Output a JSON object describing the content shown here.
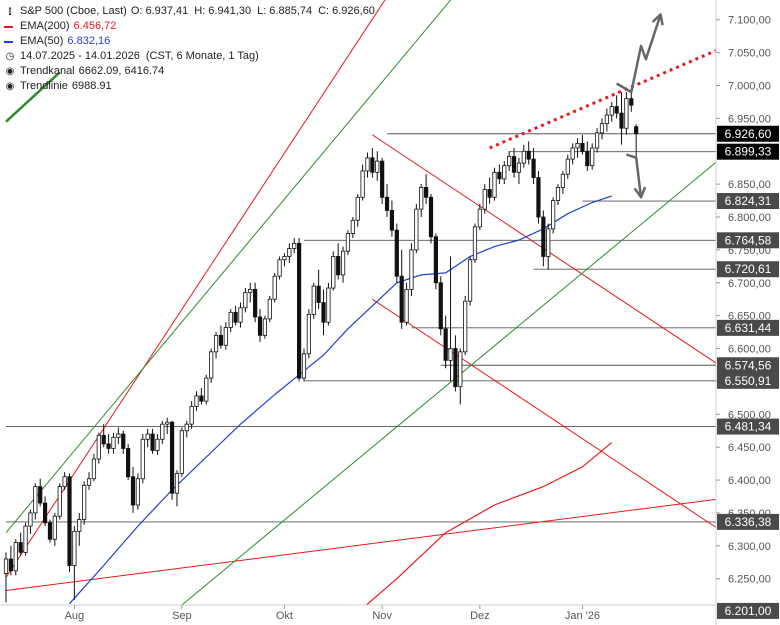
{
  "legend": {
    "title": "S&P 500 (Cboe, Last)",
    "ohlc": {
      "o_label": "O:",
      "o": "6.937,41",
      "h_label": "H:",
      "h": "6.941,30",
      "l_label": "L:",
      "l": "6.885,74",
      "c_label": "C:",
      "c": "6.926,60"
    },
    "ema200": {
      "label": "EMA(200)",
      "value": "6.456,72",
      "color": "#e8191c"
    },
    "ema50": {
      "label": "EMA(50)",
      "value": "6.832,16",
      "color": "#1f3fd6"
    },
    "period": "14.07.2025 - 14.01.2026",
    "period_info": "(CST, 6 Monate, 1 Tag)",
    "trendkanal": {
      "label": "Trendkanal",
      "value": "6662.09, 6416.74"
    },
    "trendlinie": {
      "label": "Trendlinie",
      "value": "6988.91"
    }
  },
  "chart_data": {
    "type": "candlestick",
    "y_range": [
      6210,
      7130
    ],
    "y_ticks": [
      6250,
      6300,
      6350,
      6400,
      6450,
      6500,
      6550,
      6600,
      6650,
      6700,
      6750,
      6800,
      6850,
      6900,
      6950,
      7000,
      7050,
      7100
    ],
    "y_tick_labels": [
      "6.250,00",
      "6.300,00",
      "6.350,00",
      "6.400,00",
      "6.450,00",
      "6.500,00",
      "6.550,00",
      "6.600,00",
      "6.650,00",
      "6.700,00",
      "6.750,00",
      "6.800,00",
      "6.850,00",
      "6.900,00",
      "6.950,00",
      "7.000,00",
      "7.050,00",
      "7.100,00"
    ],
    "x_labels": [
      {
        "label": "Aug",
        "day": 14
      },
      {
        "label": "Sep",
        "day": 36
      },
      {
        "label": "Okt",
        "day": 57
      },
      {
        "label": "Nov",
        "day": 77
      },
      {
        "label": "Dez",
        "day": 97
      },
      {
        "label": "Jan '26",
        "day": 118
      }
    ],
    "total_days": 145,
    "candles": [
      [
        6258,
        6290,
        6214,
        6280
      ],
      [
        6280,
        6300,
        6255,
        6262
      ],
      [
        6262,
        6310,
        6255,
        6305
      ],
      [
        6305,
        6320,
        6285,
        6290
      ],
      [
        6290,
        6335,
        6285,
        6330
      ],
      [
        6330,
        6355,
        6318,
        6350
      ],
      [
        6350,
        6395,
        6340,
        6390
      ],
      [
        6390,
        6402,
        6360,
        6365
      ],
      [
        6365,
        6375,
        6330,
        6335
      ],
      [
        6335,
        6340,
        6305,
        6310
      ],
      [
        6310,
        6350,
        6300,
        6345
      ],
      [
        6345,
        6395,
        6340,
        6390
      ],
      [
        6390,
        6412,
        6385,
        6405
      ],
      [
        6405,
        6410,
        6260,
        6270
      ],
      [
        6270,
        6330,
        6218,
        6322
      ],
      [
        6322,
        6350,
        6300,
        6340
      ],
      [
        6340,
        6398,
        6332,
        6392
      ],
      [
        6392,
        6412,
        6385,
        6402
      ],
      [
        6402,
        6440,
        6398,
        6432
      ],
      [
        6432,
        6472,
        6425,
        6468
      ],
      [
        6468,
        6485,
        6450,
        6455
      ],
      [
        6455,
        6470,
        6440,
        6448
      ],
      [
        6448,
        6472,
        6440,
        6465
      ],
      [
        6465,
        6480,
        6455,
        6470
      ],
      [
        6470,
        6475,
        6440,
        6448
      ],
      [
        6448,
        6455,
        6400,
        6405
      ],
      [
        6405,
        6420,
        6350,
        6362
      ],
      [
        6362,
        6410,
        6355,
        6402
      ],
      [
        6402,
        6470,
        6395,
        6462
      ],
      [
        6462,
        6478,
        6450,
        6470
      ],
      [
        6470,
        6478,
        6440,
        6445
      ],
      [
        6445,
        6470,
        6438,
        6462
      ],
      [
        6462,
        6490,
        6455,
        6485
      ],
      [
        6485,
        6495,
        6470,
        6488
      ],
      [
        6488,
        6490,
        6370,
        6380
      ],
      [
        6380,
        6415,
        6360,
        6410
      ],
      [
        6410,
        6480,
        6405,
        6475
      ],
      [
        6475,
        6490,
        6465,
        6485
      ],
      [
        6485,
        6520,
        6478,
        6512
      ],
      [
        6512,
        6535,
        6505,
        6528
      ],
      [
        6528,
        6540,
        6515,
        6520
      ],
      [
        6520,
        6560,
        6515,
        6555
      ],
      [
        6555,
        6600,
        6548,
        6595
      ],
      [
        6595,
        6625,
        6585,
        6620
      ],
      [
        6620,
        6635,
        6600,
        6605
      ],
      [
        6605,
        6640,
        6598,
        6632
      ],
      [
        6632,
        6660,
        6625,
        6655
      ],
      [
        6655,
        6665,
        6635,
        6640
      ],
      [
        6640,
        6670,
        6632,
        6662
      ],
      [
        6662,
        6692,
        6655,
        6685
      ],
      [
        6685,
        6700,
        6670,
        6690
      ],
      [
        6690,
        6700,
        6640,
        6648
      ],
      [
        6648,
        6660,
        6610,
        6620
      ],
      [
        6620,
        6650,
        6615,
        6645
      ],
      [
        6645,
        6680,
        6640,
        6675
      ],
      [
        6675,
        6715,
        6670,
        6710
      ],
      [
        6710,
        6740,
        6705,
        6735
      ],
      [
        6735,
        6745,
        6725,
        6740
      ],
      [
        6740,
        6760,
        6730,
        6752
      ],
      [
        6752,
        6768,
        6745,
        6760
      ],
      [
        6760,
        6768,
        6550,
        6555
      ],
      [
        6555,
        6600,
        6550,
        6592
      ],
      [
        6592,
        6660,
        6585,
        6652
      ],
      [
        6652,
        6700,
        6645,
        6695
      ],
      [
        6695,
        6720,
        6660,
        6670
      ],
      [
        6670,
        6690,
        6620,
        6640
      ],
      [
        6640,
        6700,
        6635,
        6692
      ],
      [
        6692,
        6748,
        6688,
        6740
      ],
      [
        6740,
        6760,
        6705,
        6712
      ],
      [
        6712,
        6755,
        6700,
        6748
      ],
      [
        6748,
        6780,
        6742,
        6775
      ],
      [
        6775,
        6800,
        6768,
        6795
      ],
      [
        6795,
        6835,
        6785,
        6830
      ],
      [
        6830,
        6880,
        6825,
        6870
      ],
      [
        6870,
        6898,
        6860,
        6890
      ],
      [
        6890,
        6905,
        6860,
        6868
      ],
      [
        6868,
        6900,
        6855,
        6885
      ],
      [
        6885,
        6890,
        6820,
        6830
      ],
      [
        6830,
        6850,
        6800,
        6810
      ],
      [
        6810,
        6825,
        6770,
        6780
      ],
      [
        6780,
        6790,
        6700,
        6710
      ],
      [
        6710,
        6750,
        6630,
        6640
      ],
      [
        6640,
        6700,
        6635,
        6690
      ],
      [
        6690,
        6760,
        6680,
        6750
      ],
      [
        6750,
        6820,
        6745,
        6812
      ],
      [
        6812,
        6850,
        6800,
        6845
      ],
      [
        6845,
        6865,
        6820,
        6830
      ],
      [
        6830,
        6835,
        6760,
        6770
      ],
      [
        6770,
        6775,
        6690,
        6700
      ],
      [
        6700,
        6710,
        6620,
        6630
      ],
      [
        6630,
        6650,
        6570,
        6582
      ],
      [
        6582,
        6740,
        6550,
        6600
      ],
      [
        6600,
        6620,
        6535,
        6542
      ],
      [
        6542,
        6600,
        6515,
        6595
      ],
      [
        6595,
        6680,
        6590,
        6672
      ],
      [
        6672,
        6740,
        6665,
        6735
      ],
      [
        6735,
        6790,
        6730,
        6785
      ],
      [
        6785,
        6820,
        6780,
        6812
      ],
      [
        6812,
        6850,
        6805,
        6842
      ],
      [
        6842,
        6860,
        6820,
        6830
      ],
      [
        6830,
        6875,
        6825,
        6868
      ],
      [
        6868,
        6880,
        6850,
        6858
      ],
      [
        6858,
        6885,
        6850,
        6878
      ],
      [
        6878,
        6900,
        6870,
        6892
      ],
      [
        6892,
        6905,
        6860,
        6868
      ],
      [
        6868,
        6890,
        6850,
        6882
      ],
      [
        6882,
        6910,
        6875,
        6900
      ],
      [
        6900,
        6915,
        6880,
        6888
      ],
      [
        6888,
        6905,
        6850,
        6860
      ],
      [
        6860,
        6870,
        6790,
        6800
      ],
      [
        6800,
        6810,
        6725,
        6740
      ],
      [
        6740,
        6790,
        6720,
        6782
      ],
      [
        6782,
        6830,
        6775,
        6825
      ],
      [
        6825,
        6850,
        6818,
        6845
      ],
      [
        6845,
        6870,
        6835,
        6865
      ],
      [
        6865,
        6895,
        6858,
        6888
      ],
      [
        6888,
        6912,
        6880,
        6905
      ],
      [
        6905,
        6920,
        6890,
        6912
      ],
      [
        6912,
        6925,
        6895,
        6900
      ],
      [
        6900,
        6915,
        6870,
        6878
      ],
      [
        6878,
        6912,
        6872,
        6905
      ],
      [
        6905,
        6935,
        6898,
        6928
      ],
      [
        6928,
        6950,
        6918,
        6942
      ],
      [
        6942,
        6965,
        6930,
        6955
      ],
      [
        6955,
        6975,
        6945,
        6968
      ],
      [
        6968,
        6985,
        6950,
        6958
      ],
      [
        6958,
        6990,
        6910,
        6935
      ],
      [
        6935,
        6990,
        6925,
        6980
      ],
      [
        6980,
        6995,
        6960,
        6970
      ],
      [
        6937.41,
        6941.3,
        6885.74,
        6926.6
      ]
    ],
    "ema50": [
      [
        13,
        6212
      ],
      [
        20,
        6270
      ],
      [
        27,
        6330
      ],
      [
        34,
        6385
      ],
      [
        41,
        6435
      ],
      [
        48,
        6485
      ],
      [
        55,
        6530
      ],
      [
        60,
        6560
      ],
      [
        65,
        6590
      ],
      [
        70,
        6630
      ],
      [
        75,
        6665
      ],
      [
        80,
        6700
      ],
      [
        85,
        6712
      ],
      [
        90,
        6715
      ],
      [
        95,
        6740
      ],
      [
        100,
        6755
      ],
      [
        105,
        6765
      ],
      [
        110,
        6782
      ],
      [
        115,
        6805
      ],
      [
        120,
        6822
      ],
      [
        124,
        6832
      ]
    ],
    "ema200": [
      [
        73,
        6205
      ],
      [
        80,
        6250
      ],
      [
        90,
        6320
      ],
      [
        100,
        6362
      ],
      [
        110,
        6390
      ],
      [
        118,
        6420
      ],
      [
        124,
        6457
      ]
    ],
    "horizontal_levels": [
      {
        "start_day": 78,
        "value": 6926.6,
        "label": "6.926,60",
        "highlight": true
      },
      {
        "start_day": 103,
        "value": 6899.33,
        "label": "6.899,33",
        "highlight": true
      },
      {
        "start_day": 118,
        "value": 6824.31,
        "label": "6.824,31",
        "highlight": false
      },
      {
        "start_day": 61,
        "value": 6764.58,
        "label": "6.764,58",
        "highlight": false
      },
      {
        "start_day": 108,
        "value": 6720.61,
        "label": "6.720,61",
        "highlight": false
      },
      {
        "start_day": 83,
        "value": 6631.44,
        "label": "6.631,44",
        "highlight": false
      },
      {
        "start_day": 89,
        "value": 6574.56,
        "label": "6.574,56",
        "highlight": false
      },
      {
        "start_day": 61,
        "value": 6550.91,
        "label": "6.550,91",
        "highlight": false
      },
      {
        "start_day": 0,
        "value": 6481.34,
        "label": "6.481,34",
        "highlight": false
      },
      {
        "start_day": 0,
        "value": 6336.38,
        "label": "6.336,38",
        "highlight": false
      },
      {
        "start_day": 0,
        "value": 6201.0,
        "label": "6.201,00",
        "highlight": false
      }
    ],
    "trend_lines": [
      {
        "name": "",
        "color": "#e8191c",
        "from": [
          0,
          6232
        ],
        "to": [
          150,
          6375
        ]
      },
      {
        "name": "",
        "color": "#e8191c",
        "from": [
          0,
          6252
        ],
        "to": [
          150,
          7950
        ]
      },
      {
        "name": "",
        "color": "#e8191c",
        "from": [
          75,
          6925
        ],
        "to": [
          150,
          6555
        ]
      },
      {
        "name": "",
        "color": "#e8191c",
        "from": [
          75,
          6675
        ],
        "to": [
          150,
          6305
        ]
      },
      {
        "name": "",
        "color": "#2e8b2e",
        "from": [
          0,
          6320
        ],
        "to": [
          150,
          7655
        ]
      },
      {
        "name": "",
        "color": "#2e8b2e",
        "from": [
          36,
          6210
        ],
        "to": [
          150,
          6912
        ]
      },
      {
        "name": "",
        "color": "#2e8b2e",
        "from": [
          0,
          6945
        ],
        "to": [
          11,
          7020
        ]
      }
    ],
    "dotted_resistance": {
      "color": "#e8191c",
      "from": [
        99,
        6905
      ],
      "to": [
        150,
        7068
      ]
    },
    "arrows": {
      "up": {
        "from": [
          125,
          7003
        ],
        "via": [
          [
            128,
            6990
          ],
          [
            130,
            7060
          ],
          [
            131,
            7040
          ]
        ],
        "to": [
          134,
          7108
        ]
      },
      "down": {
        "from": [
          127,
          6895
        ],
        "via": [
          [
            129,
            6890
          ]
        ],
        "to": [
          130,
          6830
        ]
      }
    }
  }
}
